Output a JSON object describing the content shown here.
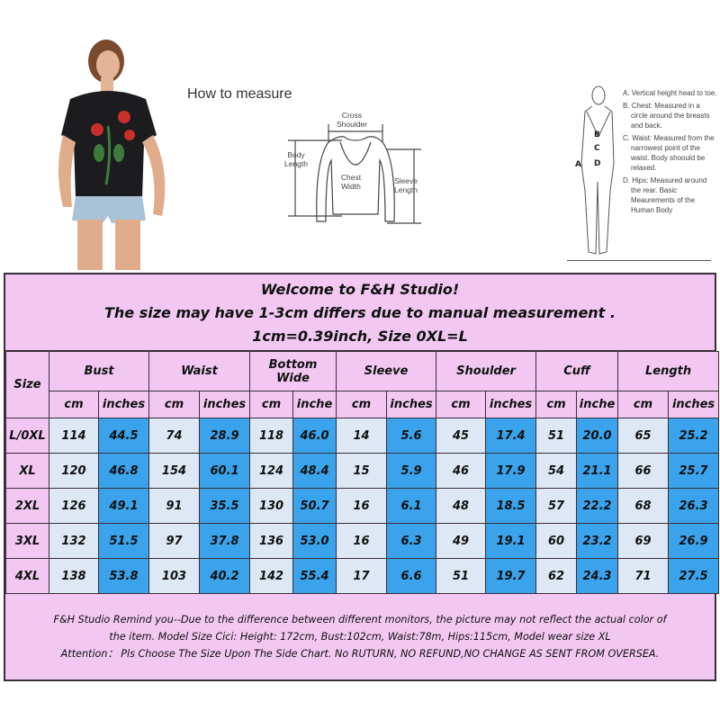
{
  "diagram": {
    "how_to_measure": "How to measure",
    "cross_shoulder": "Cross Shoulder",
    "body_length": "Body Length",
    "chest_width": "Chest Width",
    "sleeve_length": "Sleeve Length",
    "body_labels": [
      "A",
      "B",
      "C",
      "D"
    ],
    "notes": [
      "A. Vertical height head to toe.",
      "B. Chest: Measured in a circle around the breasts and back.",
      "C. Waist: Measured from the narrowest point of the waist. Body shoould be relaxed.",
      "D. Hips: Measured around the rear. Basic Meaurements of the Human Body"
    ]
  },
  "chart": {
    "title_lines": [
      "Welcome to F&H Studio!",
      "The size may have 1-3cm differs due to manual measurement .",
      "1cm=0.39inch, Size 0XL=L"
    ],
    "size_header": "Size",
    "groups": [
      "Bust",
      "Waist",
      "Bottom Wide",
      "Sleeve",
      "Shoulder",
      "Cuff",
      "Length"
    ],
    "units": [
      "cm",
      "inches",
      "cm",
      "inches",
      "cm",
      "inche",
      "cm",
      "inches",
      "cm",
      "inches",
      "cm",
      "inche",
      "cm",
      "inches"
    ],
    "rows": [
      {
        "size": "L/0XL",
        "values": [
          "114",
          "44.5",
          "74",
          "28.9",
          "118",
          "46.0",
          "14",
          "5.6",
          "45",
          "17.4",
          "51",
          "20.0",
          "65",
          "25.2"
        ]
      },
      {
        "size": "XL",
        "values": [
          "120",
          "46.8",
          "154",
          "60.1",
          "124",
          "48.4",
          "15",
          "5.9",
          "46",
          "17.9",
          "54",
          "21.1",
          "66",
          "25.7"
        ]
      },
      {
        "size": "2XL",
        "values": [
          "126",
          "49.1",
          "91",
          "35.5",
          "130",
          "50.7",
          "16",
          "6.1",
          "48",
          "18.5",
          "57",
          "22.2",
          "68",
          "26.3"
        ]
      },
      {
        "size": "3XL",
        "values": [
          "132",
          "51.5",
          "97",
          "37.8",
          "136",
          "53.0",
          "16",
          "6.3",
          "49",
          "19.1",
          "60",
          "23.2",
          "69",
          "26.9"
        ]
      },
      {
        "size": "4XL",
        "values": [
          "138",
          "53.8",
          "103",
          "40.2",
          "142",
          "55.4",
          "17",
          "6.6",
          "51",
          "19.7",
          "62",
          "24.3",
          "71",
          "27.5"
        ]
      }
    ],
    "footer_lines": [
      "F&H Studio Remind you--Due to the difference between different monitors, the picture may not reflect the actual color of",
      "the item. Model Size Cici: Height: 172cm, Bust:102cm, Waist:78m, Hips:115cm, Model wear size XL",
      "Attention： Pls Choose The Size Upon The Side Chart. No RUTURN, NO REFUND,NO CHANGE AS SENT FROM OVERSEA."
    ]
  },
  "colors": {
    "pink": "#f2c8f2",
    "light_cell": "#dde8f4",
    "blue_cell": "#3aa3ec",
    "border": "#3a2f3a"
  }
}
